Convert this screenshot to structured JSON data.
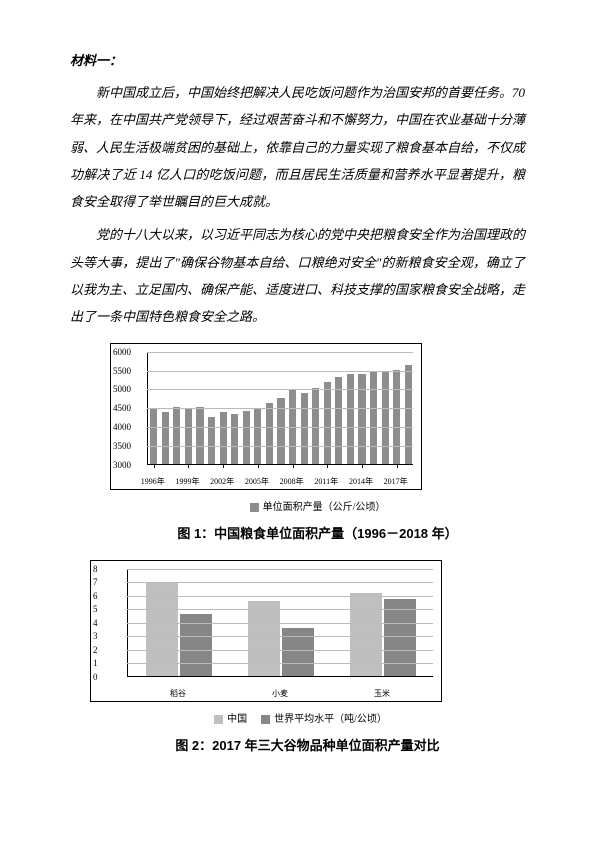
{
  "heading": "材料一：",
  "para1": "新中国成立后，中国始终把解决人民吃饭问题作为治国安邦的首要任务。70 年来，在中国共产党领导下，经过艰苦奋斗和不懈努力，中国在农业基础十分薄弱、人民生活极端贫困的基础上，依靠自己的力量实现了粮食基本自给，不仅成功解决了近 14 亿人口的吃饭问题，而且居民生活质量和营养水平显著提升，粮食安全取得了举世瞩目的巨大成就。",
  "para2": "党的十八大以来，以习近平同志为核心的党中央把粮食安全作为治国理政的头等大事，提出了\"确保谷物基本自给、口粮绝对安全\"的新粮食安全观，确立了以我为主、立足国内、确保产能、适度进口、科技支撑的国家粮食安全战略，走出了一条中国特色粮食安全之路。",
  "chart1": {
    "type": "bar",
    "ylim": [
      3000,
      6000
    ],
    "ytick_step": 500,
    "yticks": [
      3000,
      3500,
      4000,
      4500,
      5000,
      5500,
      6000
    ],
    "xlabels_visible": [
      "1996年",
      "1999年",
      "2002年",
      "2005年",
      "2008年",
      "2011年",
      "2014年",
      "2017年"
    ],
    "values": [
      4480,
      4380,
      4500,
      4490,
      4500,
      4250,
      4370,
      4330,
      4400,
      4470,
      4620,
      4750,
      4950,
      4870,
      5000,
      5170,
      5300,
      5370,
      5390,
      5450,
      5450,
      5500,
      5620
    ],
    "bar_color": "#8d8d8d",
    "grid_color": "#bbbbbb",
    "legend_label": "单位面积产量（公斤/公顷）",
    "legend_swatch": "#8d8d8d",
    "caption": "图 1：中国粮食单位面积产量（1996－2018 年）"
  },
  "chart2": {
    "type": "grouped-bar",
    "ylim": [
      0,
      8
    ],
    "ytick_step": 1,
    "yticks": [
      0,
      1,
      2,
      3,
      4,
      5,
      6,
      7,
      8
    ],
    "categories": [
      "稻谷",
      "小麦",
      "玉米"
    ],
    "series": [
      {
        "name": "中国",
        "color": "#bfbfbf",
        "values": [
          6.9,
          5.5,
          6.1
        ]
      },
      {
        "name": "世界平均水平（吨/公顷）",
        "color": "#868686",
        "values": [
          4.6,
          3.5,
          5.7
        ]
      }
    ],
    "grid_color": "#bbbbbb",
    "caption": "图 2：2017 年三大谷物品种单位面积产量对比"
  }
}
